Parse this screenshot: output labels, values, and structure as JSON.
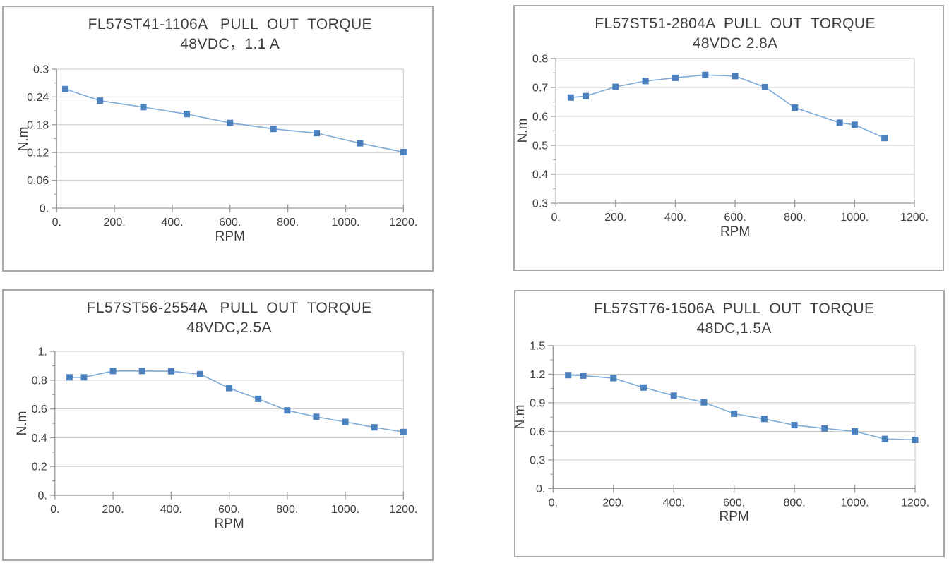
{
  "colors": {
    "marker": "#4b80be",
    "line": "#7cabd9",
    "grid": "#c9c9c9",
    "axis": "#9b9b9f",
    "text": "#3c3c3c",
    "panel_border": "#a9a9ad"
  },
  "chart_data": [
    {
      "type": "line",
      "title_line1": "FL57ST41-1106A   PULL  OUT  TORQUE",
      "title_line2": "48VDC，1.1 A",
      "xlabel": "RPM",
      "ylabel": "N.m",
      "xlim": [
        0,
        1200
      ],
      "ylim": [
        0,
        0.3
      ],
      "grid": "horizontal",
      "legend": "none",
      "marker": "square",
      "xticks": [
        {
          "v": 0,
          "label": "0."
        },
        {
          "v": 200,
          "label": "200."
        },
        {
          "v": 400,
          "label": "400."
        },
        {
          "v": 600,
          "label": "600."
        },
        {
          "v": 800,
          "label": "800."
        },
        {
          "v": 1000,
          "label": "1000."
        },
        {
          "v": 1200,
          "label": "1200."
        }
      ],
      "yticks": [
        {
          "v": 0,
          "label": "0."
        },
        {
          "v": 0.06,
          "label": "0.06"
        },
        {
          "v": 0.12,
          "label": "0.12"
        },
        {
          "v": 0.18,
          "label": "0.18"
        },
        {
          "v": 0.24,
          "label": "0.24"
        },
        {
          "v": 0.3,
          "label": "0.3"
        }
      ],
      "x": [
        30,
        150,
        300,
        450,
        600,
        750,
        900,
        1050,
        1200
      ],
      "y": [
        0.257,
        0.232,
        0.218,
        0.203,
        0.184,
        0.171,
        0.162,
        0.14,
        0.121
      ]
    },
    {
      "type": "line",
      "title_line1": "FL57ST51-2804A  PULL  OUT  TORQUE",
      "title_line2": "48VDC 2.8A",
      "xlabel": "RPM",
      "ylabel": "N.m",
      "xlim": [
        0,
        1200
      ],
      "ylim": [
        0.3,
        0.8
      ],
      "grid": "horizontal",
      "legend": "none",
      "marker": "square",
      "xticks": [
        {
          "v": 0,
          "label": "0."
        },
        {
          "v": 200,
          "label": "200."
        },
        {
          "v": 400,
          "label": "400."
        },
        {
          "v": 600,
          "label": "600."
        },
        {
          "v": 800,
          "label": "800."
        },
        {
          "v": 1000,
          "label": "1000."
        },
        {
          "v": 1200,
          "label": "1200."
        }
      ],
      "yticks": [
        {
          "v": 0.3,
          "label": "0.3"
        },
        {
          "v": 0.4,
          "label": "0.4"
        },
        {
          "v": 0.5,
          "label": "0.5"
        },
        {
          "v": 0.6,
          "label": "0.6"
        },
        {
          "v": 0.7,
          "label": "0.7"
        },
        {
          "v": 0.8,
          "label": "0.8"
        }
      ],
      "x": [
        50,
        100,
        200,
        300,
        400,
        500,
        600,
        700,
        800,
        950,
        1000,
        1100
      ],
      "y": [
        0.665,
        0.67,
        0.702,
        0.722,
        0.733,
        0.743,
        0.739,
        0.701,
        0.63,
        0.578,
        0.571,
        0.525
      ]
    },
    {
      "type": "line",
      "title_line1": "FL57ST56-2554A   PULL  OUT  TORQUE",
      "title_line2": "48VDC,2.5A",
      "xlabel": "RPM",
      "ylabel": "N.m",
      "xlim": [
        0,
        1200
      ],
      "ylim": [
        0,
        1
      ],
      "grid": "horizontal",
      "legend": "none",
      "marker": "square",
      "xticks": [
        {
          "v": 0,
          "label": "0."
        },
        {
          "v": 200,
          "label": "200."
        },
        {
          "v": 400,
          "label": "400."
        },
        {
          "v": 600,
          "label": "600."
        },
        {
          "v": 800,
          "label": "800."
        },
        {
          "v": 1000,
          "label": "1000."
        },
        {
          "v": 1200,
          "label": "1200."
        }
      ],
      "yticks": [
        {
          "v": 0,
          "label": "0."
        },
        {
          "v": 0.2,
          "label": "0.2"
        },
        {
          "v": 0.4,
          "label": "0.4"
        },
        {
          "v": 0.6,
          "label": "0.6"
        },
        {
          "v": 0.8,
          "label": "0.8"
        },
        {
          "v": 1,
          "label": "1."
        }
      ],
      "x": [
        50,
        100,
        200,
        300,
        400,
        500,
        600,
        700,
        800,
        900,
        1000,
        1100,
        1200
      ],
      "y": [
        0.82,
        0.82,
        0.864,
        0.864,
        0.862,
        0.842,
        0.745,
        0.67,
        0.59,
        0.545,
        0.51,
        0.472,
        0.44
      ]
    },
    {
      "type": "line",
      "title_line1": "FL57ST76-1506A  PULL  OUT  TORQUE",
      "title_line2": "48DC,1.5A",
      "xlabel": "RPM",
      "ylabel": "N.m",
      "xlim": [
        0,
        1200
      ],
      "ylim": [
        0,
        1.5
      ],
      "grid": "horizontal",
      "legend": "none",
      "marker": "square",
      "xticks": [
        {
          "v": 0,
          "label": "0."
        },
        {
          "v": 200,
          "label": "200."
        },
        {
          "v": 400,
          "label": "400."
        },
        {
          "v": 600,
          "label": "600."
        },
        {
          "v": 800,
          "label": "800."
        },
        {
          "v": 1000,
          "label": "1000."
        },
        {
          "v": 1200,
          "label": "1200."
        }
      ],
      "yticks": [
        {
          "v": 0,
          "label": "0."
        },
        {
          "v": 0.3,
          "label": "0.3"
        },
        {
          "v": 0.6,
          "label": "0.6"
        },
        {
          "v": 0.9,
          "label": "0.9"
        },
        {
          "v": 1.2,
          "label": "1.2"
        },
        {
          "v": 1.5,
          "label": "1.5"
        }
      ],
      "x": [
        50,
        100,
        200,
        300,
        400,
        500,
        600,
        700,
        800,
        900,
        1000,
        1100,
        1200
      ],
      "y": [
        1.19,
        1.185,
        1.158,
        1.06,
        0.975,
        0.905,
        0.785,
        0.73,
        0.665,
        0.63,
        0.6,
        0.52,
        0.51
      ]
    }
  ]
}
